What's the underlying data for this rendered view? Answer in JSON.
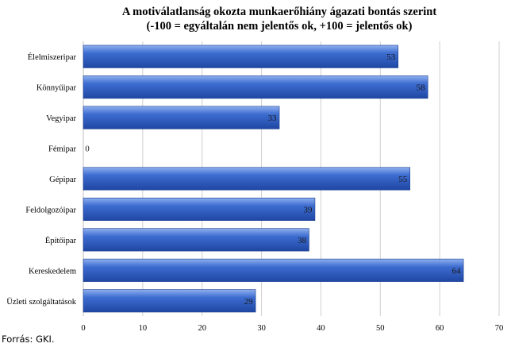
{
  "chart_data": {
    "type": "bar",
    "orientation": "horizontal",
    "title_lines": [
      "A motiválatlanság okozta munkaerőhiány ágazati bontás szerint",
      "(-100 = egyáltalán nem jelentős ok, +100 = jelentős ok)"
    ],
    "categories": [
      "Élelmiszeripar",
      "Könnyűipar",
      "Vegyipar",
      "Fémipar",
      "Gépipar",
      "Feldolgozóipar",
      "Építőipar",
      "Kereskedelem",
      "Üzleti szolgáltatások"
    ],
    "values": [
      53,
      58,
      33,
      0,
      55,
      39,
      38,
      64,
      29
    ],
    "data_labels": [
      "53",
      "58",
      "33",
      "0",
      "55",
      "39",
      "38",
      "64",
      "29"
    ],
    "xlim": [
      0,
      70
    ],
    "xticks": [
      0,
      10,
      20,
      30,
      40,
      50,
      60,
      70
    ],
    "grid": true,
    "bar_color": "#2f5dbd"
  },
  "source_text": "Forrás: GKI."
}
